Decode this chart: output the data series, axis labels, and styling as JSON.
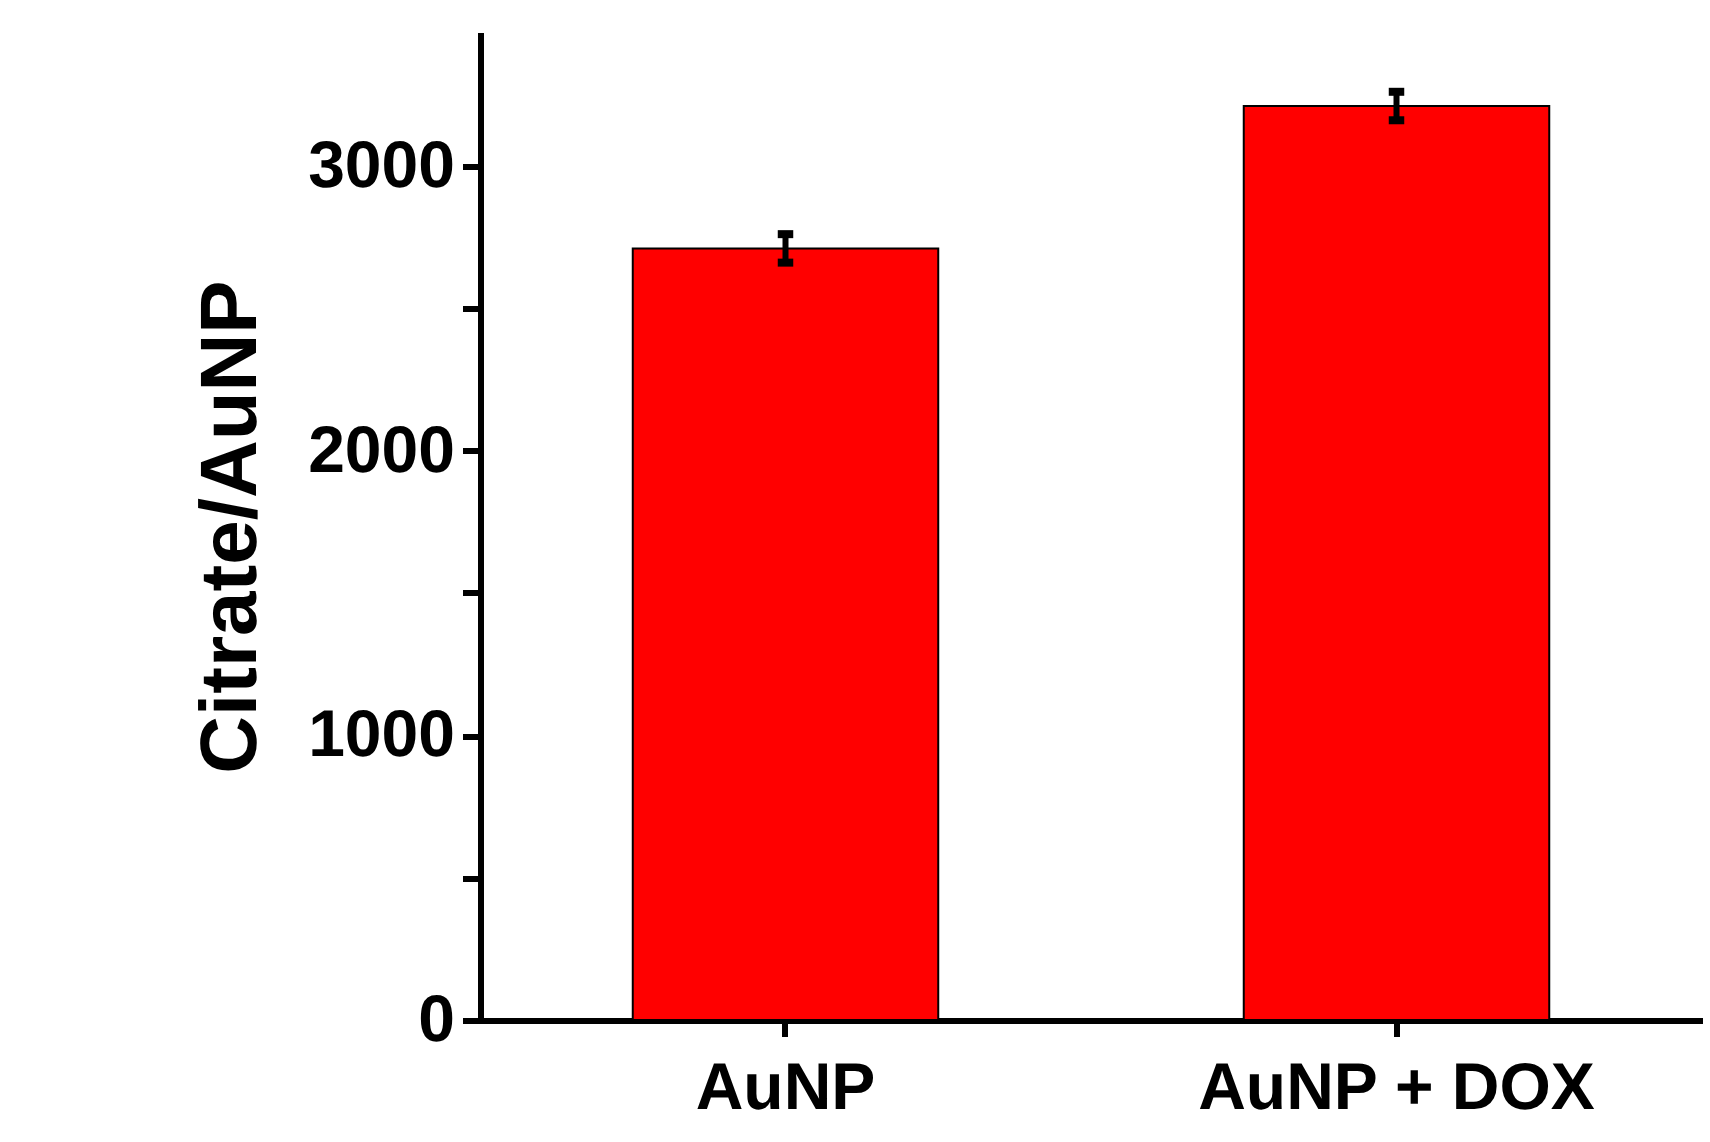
{
  "chart_data": {
    "type": "bar",
    "ylabel": "Citrate/AuNP",
    "categories": [
      "AuNP",
      "AuNP + DOX"
    ],
    "values": [
      2710,
      3210
    ],
    "errors": [
      50,
      50
    ],
    "color": "#ff0000",
    "ylim": [
      0,
      3470
    ],
    "yticks": [
      0,
      {
        "value": 500,
        "label": null
      },
      1000,
      {
        "value": 1500,
        "label": null
      },
      2000,
      {
        "value": 2500,
        "label": null
      },
      3000
    ],
    "grid": false
  }
}
